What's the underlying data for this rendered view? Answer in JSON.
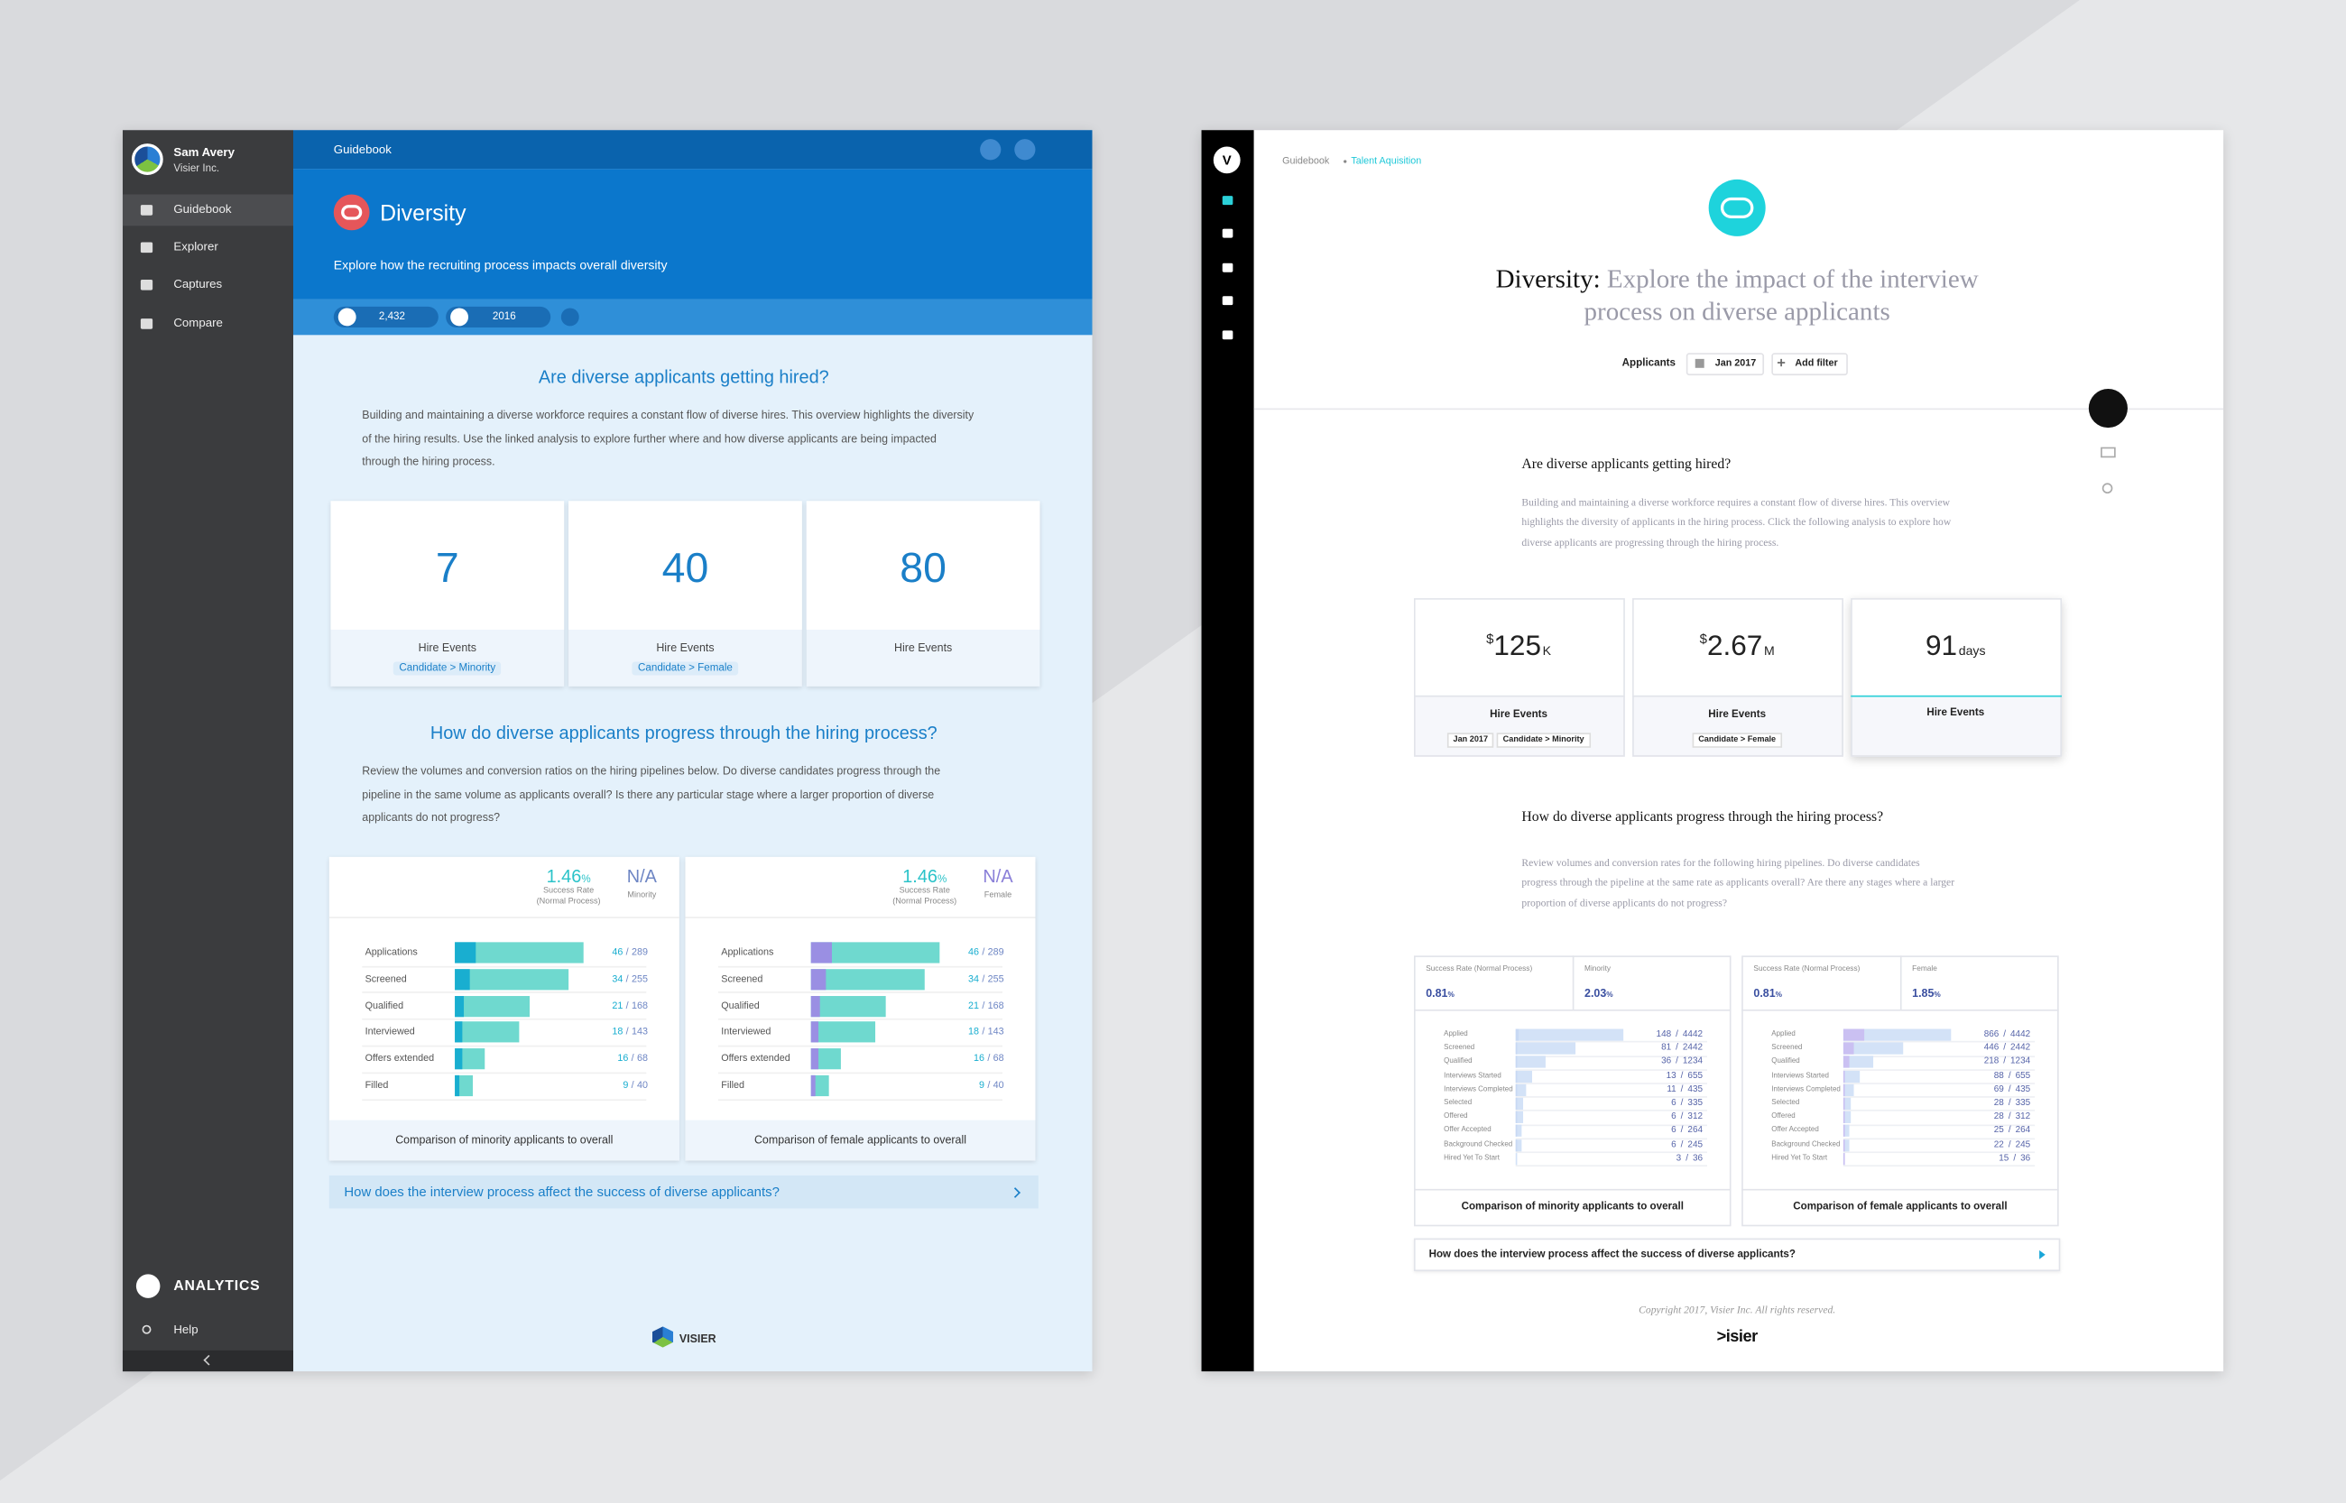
{
  "left_app": {
    "user": {
      "name": "Sam Avery",
      "org": "Visier Inc."
    },
    "nav": [
      "Guidebook",
      "Explorer",
      "Captures",
      "Compare"
    ],
    "analytics": "ANALYTICS",
    "help": "Help",
    "breadcrumb": "Guidebook",
    "title": "Diversity",
    "subtitle": "Explore how the recruiting process impacts overall diversity",
    "filters": [
      "2,432",
      "2016"
    ],
    "sections": [
      {
        "heading": "Are diverse applicants getting hired?",
        "body": "Building and maintaining a diverse workforce requires a constant flow of diverse hires. This overview highlights the diversity of the hiring results. Use the linked analysis to explore further where and how diverse applicants are being impacted through the hiring process."
      },
      {
        "heading": "How do diverse applicants progress through the hiring process?",
        "body": "Review the volumes and conversion ratios on the hiring pipelines below. Do diverse candidates progress through the pipeline in the same volume as applicants overall? Is there any particular stage where a larger proportion of diverse applicants do not progress?"
      }
    ],
    "kpis": [
      {
        "value": "7",
        "label": "Hire Events",
        "tag": "Candidate > Minority"
      },
      {
        "value": "40",
        "label": "Hire Events",
        "tag": "Candidate > Female"
      },
      {
        "value": "80",
        "label": "Hire Events"
      }
    ],
    "separator": "/",
    "total_color": "#6fd9cf",
    "funnels": [
      {
        "rate": "1.46",
        "rate_unit": "%",
        "rate_label": "Success Rate (Normal Process)",
        "group_value": "N/A",
        "group_label": "Minority",
        "group_color": "#19aed0",
        "value_color": "#6e86c4",
        "caption": "Comparison of minority applicants to overall",
        "stages": [
          "Applications",
          "Screened",
          "Qualified",
          "Interviewed",
          "Offers extended",
          "Filled"
        ],
        "group": [
          46,
          34,
          21,
          18,
          16,
          9
        ],
        "total": [
          289,
          255,
          168,
          143,
          68,
          40
        ]
      },
      {
        "rate": "1.46",
        "rate_unit": "%",
        "rate_label": "Success Rate (Normal Process)",
        "group_value": "N/A",
        "group_label": "Female",
        "group_color": "#9a8fe3",
        "value_color": "#8a7fd8",
        "caption": "Comparison of female applicants to overall",
        "stages": [
          "Applications",
          "Screened",
          "Qualified",
          "Interviewed",
          "Offers extended",
          "Filled"
        ],
        "group": [
          46,
          34,
          21,
          18,
          16,
          9
        ],
        "total": [
          289,
          255,
          168,
          143,
          68,
          40
        ]
      }
    ],
    "link": "How does the interview process affect the success of diverse applicants?",
    "logo": "VISIER"
  },
  "right_app": {
    "logo_letter": "V",
    "breadcrumb": [
      "Guidebook",
      "Talent Aquisition"
    ],
    "title": "Diversity:",
    "title_rest": "Explore the impact of the interview process on diverse applicants",
    "filters": [
      "Applicants",
      "Jan 2017",
      "Add filter"
    ],
    "sections": [
      {
        "heading": "Are diverse applicants getting hired?",
        "body": "Building and maintaining a diverse workforce requires a constant flow of diverse hires. This overview highlights the diversity of applicants in the hiring process. Click the following analysis to explore how diverse applicants are progressing through the hiring process."
      },
      {
        "heading": "How do diverse applicants progress through the hiring process?",
        "body": "Review volumes and conversion rates for the following hiring pipelines. Do diverse candidates progress through the pipeline at the same rate as applicants overall? Are there any stages where a larger proportion of diverse applicants do not progress?"
      }
    ],
    "kpis": [
      {
        "prefix": "$",
        "value": "125",
        "unit": "K",
        "label": "Hire Events",
        "tags": [
          "Jan 2017",
          "Candidate > Minority"
        ]
      },
      {
        "prefix": "$",
        "value": "2.67",
        "unit": "M",
        "label": "Hire Events",
        "tags": [
          "Candidate > Female"
        ]
      },
      {
        "value": "91",
        "unit": "days",
        "label": "Hire Events"
      }
    ],
    "separator": "/",
    "total_color": "#d3e2f7",
    "funnels": [
      {
        "rate_label": "Success Rate (Normal Process)",
        "rate": "0.81",
        "rate_unit": "%",
        "group_label": "Minority",
        "group_value": "2.03",
        "group_unit": "%",
        "group_color": "#c6d8f3",
        "caption": "Comparison of minority applicants to overall",
        "stages": [
          "Applied",
          "Screened",
          "Qualified",
          "Interviews Started",
          "Interviews Completed",
          "Selected",
          "Offered",
          "Offer Accepted",
          "Background Checked",
          "Hired Yet To Start"
        ],
        "group": [
          148,
          81,
          36,
          13,
          11,
          6,
          6,
          6,
          6,
          3
        ],
        "total": [
          4442,
          2442,
          1234,
          655,
          435,
          335,
          312,
          264,
          245,
          36
        ]
      },
      {
        "rate_label": "Success Rate (Normal Process)",
        "rate": "0.81",
        "rate_unit": "%",
        "group_label": "Female",
        "group_value": "1.85",
        "group_unit": "%",
        "group_color": "#c9bdf1",
        "caption": "Comparison of female applicants to overall",
        "stages": [
          "Applied",
          "Screened",
          "Qualified",
          "Interviews Started",
          "Interviews Completed",
          "Selected",
          "Offered",
          "Offer Accepted",
          "Background Checked",
          "Hired Yet To Start"
        ],
        "group": [
          866,
          446,
          218,
          88,
          69,
          28,
          28,
          25,
          22,
          15
        ],
        "total": [
          4442,
          2442,
          1234,
          655,
          435,
          335,
          312,
          264,
          245,
          36
        ]
      }
    ],
    "link": "How does the interview process affect the success of diverse applicants?",
    "copyright": "Copyright 2017, Visier Inc. All rights reserved.",
    "logo": ">isier"
  }
}
